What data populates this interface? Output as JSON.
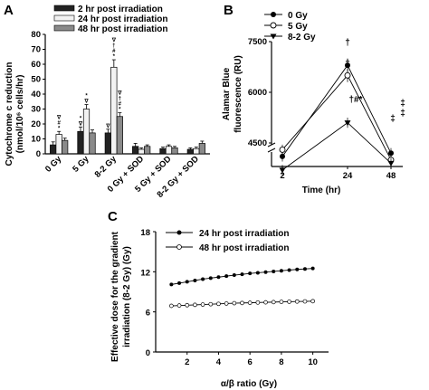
{
  "chart_data": [
    {
      "panel": "A",
      "type": "bar",
      "ylabel_line1": "Cytochrome c reduction",
      "ylabel_line2": "(nmol/10⁶ cells/hr)",
      "ylim": [
        0,
        80
      ],
      "yticks": [
        0,
        10,
        20,
        30,
        40,
        50,
        60,
        70,
        80
      ],
      "categories": [
        "0 Gy",
        "5 Gy",
        "8-2 Gy",
        "0 Gy + SOD",
        "5 Gy + SOD",
        "8-2 Gy + SOD"
      ],
      "series": [
        {
          "name": "2 hr post irradiation",
          "color": "#222222",
          "values": [
            6,
            15,
            14,
            5,
            3.5,
            3
          ],
          "errors": [
            2,
            3,
            2.5,
            2,
            1,
            1
          ]
        },
        {
          "name": "24 hr post irradiation",
          "color": "#f2f2f2",
          "values": [
            13,
            30,
            58,
            3,
            5,
            3.5
          ],
          "errors": [
            2,
            3,
            5,
            1,
            1,
            1
          ]
        },
        {
          "name": "48 hr post irradiation",
          "color": "#8a8a8a",
          "values": [
            9,
            14,
            25,
            5,
            4,
            7
          ],
          "errors": [
            1.5,
            2,
            2.5,
            1,
            1,
            1.5
          ]
        }
      ],
      "annotations": [
        {
          "category": 0,
          "series": 1,
          "text": "*"
        },
        {
          "category": 0,
          "series": 1,
          "text": "#"
        },
        {
          "category": 0,
          "series": 1,
          "text": "∇"
        },
        {
          "category": 1,
          "series": 0,
          "text": "∇"
        },
        {
          "category": 1,
          "series": 0,
          "text": "*"
        },
        {
          "category": 1,
          "series": 1,
          "text": "∇"
        },
        {
          "category": 1,
          "series": 1,
          "text": "*"
        },
        {
          "category": 2,
          "series": 0,
          "text": "∇"
        },
        {
          "category": 2,
          "series": 1,
          "text": "*"
        },
        {
          "category": 2,
          "series": 1,
          "text": "#"
        },
        {
          "category": 2,
          "series": 1,
          "text": "†"
        },
        {
          "category": 2,
          "series": 1,
          "text": "∇"
        },
        {
          "category": 2,
          "series": 2,
          "text": "*"
        },
        {
          "category": 2,
          "series": 2,
          "text": "#"
        },
        {
          "category": 2,
          "series": 2,
          "text": "†"
        },
        {
          "category": 2,
          "series": 2,
          "text": "∇"
        }
      ]
    },
    {
      "panel": "B",
      "type": "line",
      "xlabel": "Time (hr)",
      "ylabel_line1": "Alamar Blue",
      "ylabel_line2": "fluorescence (RU)",
      "x": [
        2,
        24,
        48
      ],
      "ylim": [
        3000,
        7500
      ],
      "yticks": [
        4500,
        6000,
        7500
      ],
      "series": [
        {
          "name": "0 Gy",
          "marker": "filled-circle",
          "values": [
            4100,
            6800,
            4200
          ],
          "errors": [
            150,
            200,
            150
          ]
        },
        {
          "name": "5 Gy",
          "marker": "open-circle",
          "values": [
            4300,
            6500,
            4000
          ],
          "errors": [
            150,
            200,
            150
          ]
        },
        {
          "name": "8-2 Gy",
          "marker": "filled-triangle-down",
          "values": [
            3700,
            5100,
            3900
          ],
          "errors": [
            150,
            150,
            150
          ]
        }
      ],
      "annotations": [
        {
          "x": 24,
          "text": "†"
        },
        {
          "x": 24,
          "text": "†"
        },
        {
          "x": 24,
          "text": "†#*"
        },
        {
          "x": 48,
          "text": "‡"
        },
        {
          "x": 48,
          "text": "‡"
        },
        {
          "x": 48,
          "text": "‡"
        }
      ]
    },
    {
      "panel": "C",
      "type": "line",
      "xlabel": "α/β ratio (Gy)",
      "ylabel_line1": "Effective dose for the gradient",
      "ylabel_line2": "irradiation (8-2 Gy) (Gy)",
      "xlim": [
        0,
        11
      ],
      "xticks": [
        2,
        4,
        6,
        8,
        10
      ],
      "ylim": [
        0,
        18
      ],
      "yticks": [
        0,
        6,
        12,
        18
      ],
      "series": [
        {
          "name": "24 hr post irradiation",
          "marker": "filled-circle",
          "x": [
            1,
            1.5,
            2,
            2.5,
            3,
            3.5,
            4,
            4.5,
            5,
            5.5,
            6,
            6.5,
            7,
            7.5,
            8,
            8.5,
            9,
            9.5,
            10
          ],
          "values": [
            10.1,
            10.3,
            10.5,
            10.7,
            10.9,
            11.05,
            11.2,
            11.35,
            11.5,
            11.62,
            11.75,
            11.85,
            11.95,
            12.05,
            12.15,
            12.25,
            12.35,
            12.42,
            12.5
          ]
        },
        {
          "name": "48 hr post irradiation",
          "marker": "open-circle",
          "x": [
            1,
            1.5,
            2,
            2.5,
            3,
            3.5,
            4,
            4.5,
            5,
            5.5,
            6,
            6.5,
            7,
            7.5,
            8,
            8.5,
            9,
            9.5,
            10
          ],
          "values": [
            6.9,
            6.95,
            7.0,
            7.05,
            7.1,
            7.15,
            7.2,
            7.25,
            7.3,
            7.33,
            7.36,
            7.4,
            7.43,
            7.46,
            7.5,
            7.52,
            7.55,
            7.57,
            7.6
          ]
        }
      ]
    }
  ]
}
